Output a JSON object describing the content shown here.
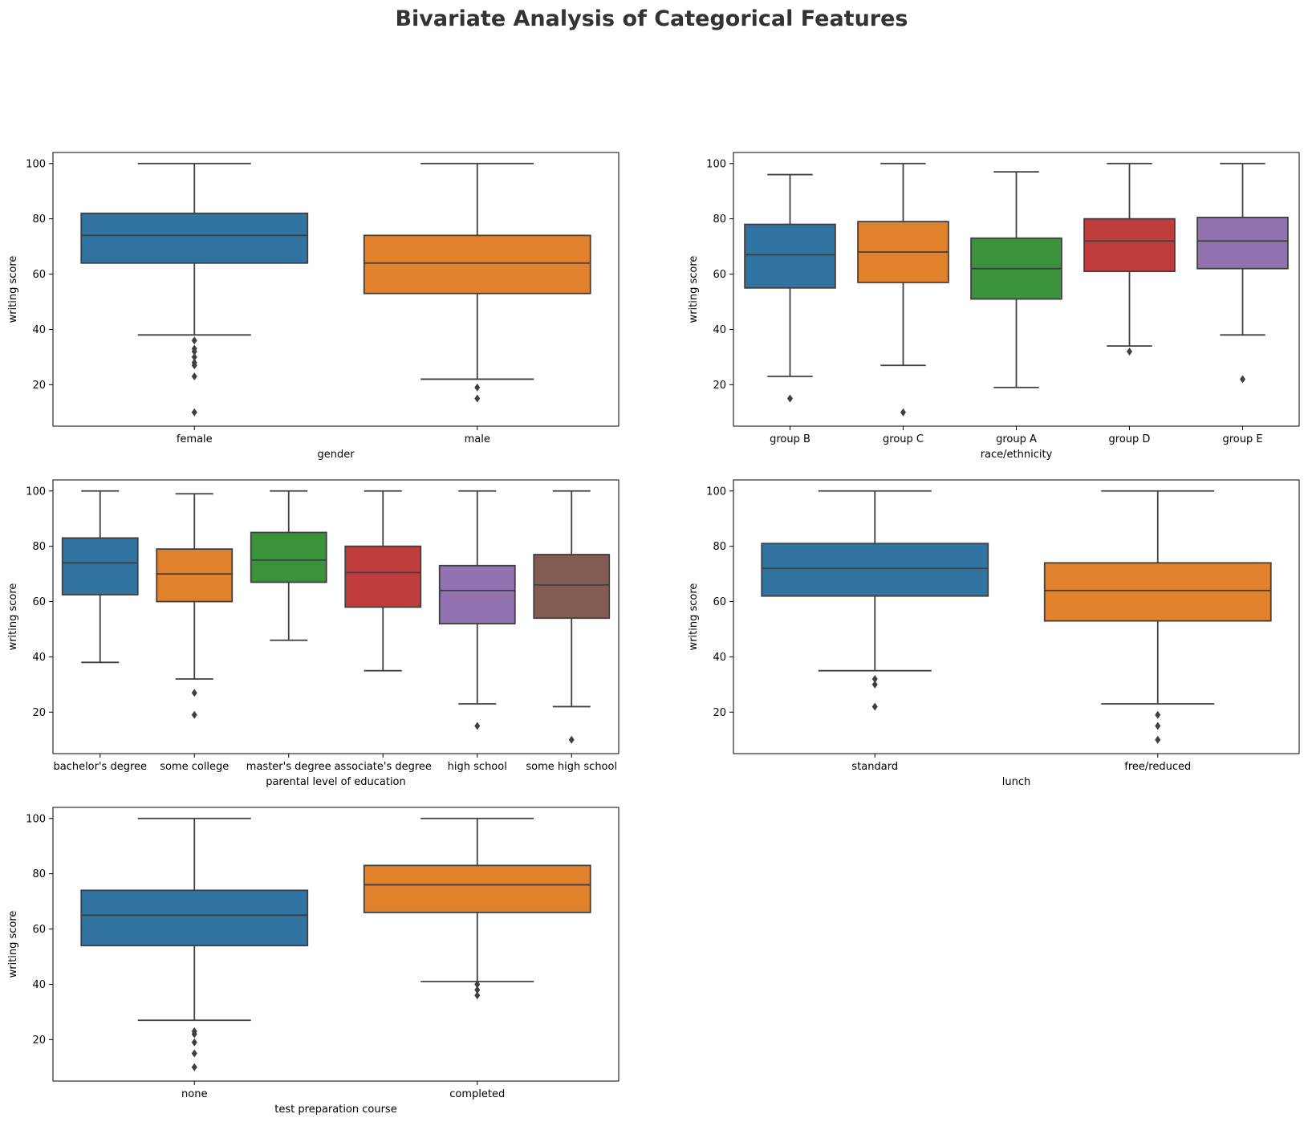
{
  "figure": {
    "title": "Bivariate Analysis of Categorical Features",
    "title_color": "#333333"
  },
  "palette": [
    "#3274a1",
    "#e1812c",
    "#3a923a",
    "#c03d3e",
    "#9372b2",
    "#845b53"
  ],
  "chart_data": [
    {
      "type": "box",
      "xlabel": "gender",
      "ylabel": "writing score",
      "yticks": [
        20,
        40,
        60,
        80,
        100
      ],
      "ylim": [
        5,
        104
      ],
      "grid": false,
      "categories": [
        "female",
        "male"
      ],
      "boxes": [
        {
          "category": "female",
          "min": 38,
          "q1": 64,
          "median": 74,
          "q3": 82,
          "max": 100,
          "outliers": [
            36,
            33,
            32,
            30,
            28,
            27,
            23,
            10
          ]
        },
        {
          "category": "male",
          "min": 22,
          "q1": 53,
          "median": 64,
          "q3": 74,
          "max": 100,
          "outliers": [
            19,
            15
          ]
        }
      ]
    },
    {
      "type": "box",
      "xlabel": "race/ethnicity",
      "ylabel": "writing score",
      "yticks": [
        20,
        40,
        60,
        80,
        100
      ],
      "ylim": [
        5,
        104
      ],
      "grid": false,
      "categories": [
        "group B",
        "group C",
        "group A",
        "group D",
        "group E"
      ],
      "boxes": [
        {
          "category": "group B",
          "min": 23,
          "q1": 55,
          "median": 67,
          "q3": 78,
          "max": 96,
          "outliers": [
            15
          ]
        },
        {
          "category": "group C",
          "min": 27,
          "q1": 57,
          "median": 68,
          "q3": 79,
          "max": 100,
          "outliers": [
            10
          ]
        },
        {
          "category": "group A",
          "min": 19,
          "q1": 51,
          "median": 62,
          "q3": 73,
          "max": 97,
          "outliers": []
        },
        {
          "category": "group D",
          "min": 34,
          "q1": 61,
          "median": 72,
          "q3": 80,
          "max": 100,
          "outliers": [
            32
          ]
        },
        {
          "category": "group E",
          "min": 38,
          "q1": 62,
          "median": 72,
          "q3": 80.5,
          "max": 100,
          "outliers": [
            22
          ]
        }
      ]
    },
    {
      "type": "box",
      "xlabel": "parental level of education",
      "ylabel": "writing score",
      "yticks": [
        20,
        40,
        60,
        80,
        100
      ],
      "ylim": [
        5,
        104
      ],
      "grid": false,
      "categories": [
        "bachelor's degree",
        "some college",
        "master's degree",
        "associate's degree",
        "high school",
        "some high school"
      ],
      "boxes": [
        {
          "category": "bachelor's degree",
          "min": 38,
          "q1": 62.5,
          "median": 74,
          "q3": 83,
          "max": 100,
          "outliers": []
        },
        {
          "category": "some college",
          "min": 32,
          "q1": 60,
          "median": 70,
          "q3": 79,
          "max": 99,
          "outliers": [
            27,
            19
          ]
        },
        {
          "category": "master's degree",
          "min": 46,
          "q1": 67,
          "median": 75,
          "q3": 85,
          "max": 100,
          "outliers": []
        },
        {
          "category": "associate's degree",
          "min": 35,
          "q1": 58,
          "median": 70.5,
          "q3": 80,
          "max": 100,
          "outliers": []
        },
        {
          "category": "high school",
          "min": 23,
          "q1": 52,
          "median": 64,
          "q3": 73,
          "max": 100,
          "outliers": [
            15
          ]
        },
        {
          "category": "some high school",
          "min": 22,
          "q1": 54,
          "median": 66,
          "q3": 77,
          "max": 100,
          "outliers": [
            10
          ]
        }
      ]
    },
    {
      "type": "box",
      "xlabel": "lunch",
      "ylabel": "writing score",
      "yticks": [
        20,
        40,
        60,
        80,
        100
      ],
      "ylim": [
        5,
        104
      ],
      "grid": false,
      "categories": [
        "standard",
        "free/reduced"
      ],
      "boxes": [
        {
          "category": "standard",
          "min": 35,
          "q1": 62,
          "median": 72,
          "q3": 81,
          "max": 100,
          "outliers": [
            32,
            30,
            22
          ]
        },
        {
          "category": "free/reduced",
          "min": 23,
          "q1": 53,
          "median": 64,
          "q3": 74,
          "max": 100,
          "outliers": [
            19,
            15,
            10
          ]
        }
      ]
    },
    {
      "type": "box",
      "xlabel": "test preparation course",
      "ylabel": "writing score",
      "yticks": [
        20,
        40,
        60,
        80,
        100
      ],
      "ylim": [
        5,
        104
      ],
      "grid": false,
      "categories": [
        "none",
        "completed"
      ],
      "boxes": [
        {
          "category": "none",
          "min": 27,
          "q1": 54,
          "median": 65,
          "q3": 74,
          "max": 100,
          "outliers": [
            23,
            22,
            19,
            15,
            10
          ]
        },
        {
          "category": "completed",
          "min": 41,
          "q1": 66,
          "median": 76,
          "q3": 83,
          "max": 100,
          "outliers": [
            40,
            38,
            36
          ]
        }
      ]
    }
  ]
}
